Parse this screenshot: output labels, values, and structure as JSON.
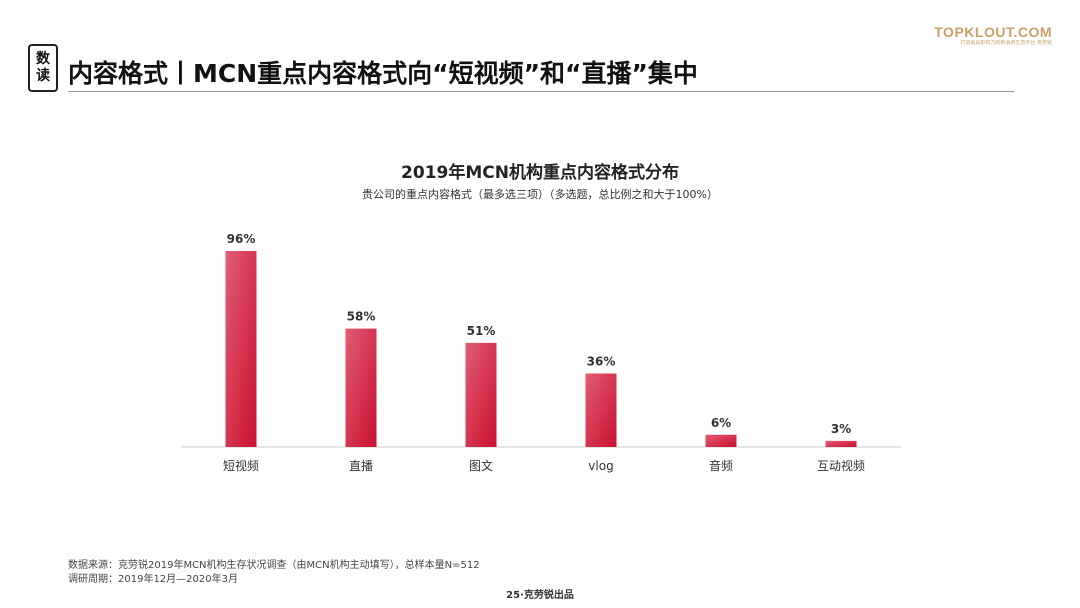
{
  "header": {
    "badge": [
      "数",
      "读"
    ],
    "title": "内容格式丨MCN重点内容格式向“短视频”和“直播”集中",
    "brand_name": "TOPKLOUT.COM",
    "brand_tagline": "打造最具影响力的新消费生态平台 克劳锐"
  },
  "colors": {
    "bar_top": "#e25c74",
    "bar_bottom": "#c8102e",
    "axis": "#cccccc",
    "brand": "#c9a063"
  },
  "chart_data": {
    "type": "bar",
    "title": "2019年MCN机构重点内容格式分布",
    "subtitle": "贵公司的重点内容格式（最多选三项）（多选题，总比例之和大于100%）",
    "categories": [
      "短视频",
      "直播",
      "图文",
      "vlog",
      "音频",
      "互动视频"
    ],
    "values": [
      96,
      58,
      51,
      36,
      6,
      3
    ],
    "value_labels": [
      "96%",
      "58%",
      "51%",
      "36%",
      "6%",
      "3%"
    ],
    "unit": "%",
    "ylim": [
      0,
      100
    ],
    "grid": false,
    "legend": "none"
  },
  "footer": {
    "source": "数据来源：克劳锐2019年MCN机构生存状况调查（由MCN机构主动填写），总样本量N=512",
    "period": "调研周期：2019年12月—2020年3月",
    "page": "25·克劳锐出品"
  }
}
